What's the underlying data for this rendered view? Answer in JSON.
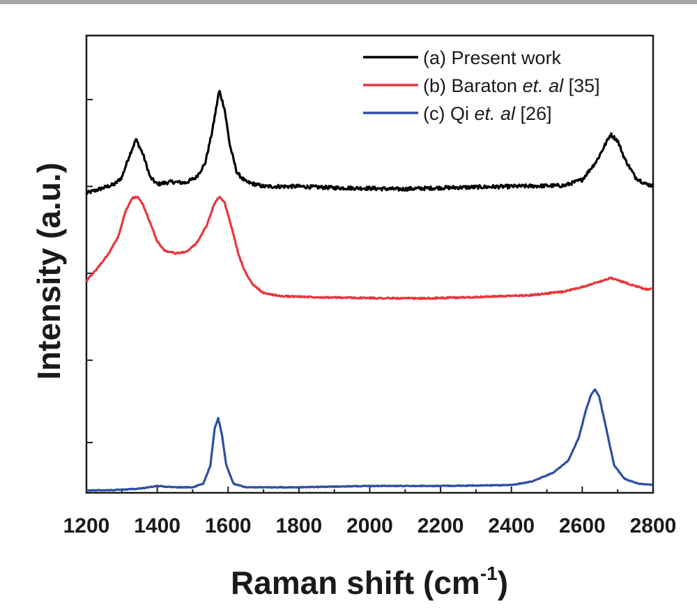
{
  "chart_data": {
    "type": "line",
    "title": "",
    "xlabel": "Raman shift (cm",
    "xlabel_sup": "-1",
    "xlabel_close": ")",
    "ylabel": "Intensity (a.u.)",
    "xlim": [
      1200,
      2800
    ],
    "ylim": [
      0,
      1
    ],
    "xticks": [
      1200,
      1400,
      1600,
      1800,
      2000,
      2200,
      2400,
      2600,
      2800
    ],
    "xtick_labels": [
      "1200",
      "1400",
      "1600",
      "1800",
      "2000",
      "2200",
      "2400",
      "2600",
      "2800"
    ],
    "grid": false,
    "legend_position": "top-right",
    "y_tick_marks": [
      0.11,
      0.29,
      0.48,
      0.67,
      0.86
    ],
    "series": [
      {
        "name": "(a) Present work",
        "legend": {
          "prefix": "(a) Present work",
          "italic": "",
          "suffix": ""
        },
        "color": "#000000",
        "noise": 0.004,
        "points": [
          [
            1200,
            0.655
          ],
          [
            1240,
            0.665
          ],
          [
            1280,
            0.675
          ],
          [
            1300,
            0.69
          ],
          [
            1320,
            0.735
          ],
          [
            1340,
            0.773
          ],
          [
            1360,
            0.74
          ],
          [
            1380,
            0.69
          ],
          [
            1400,
            0.675
          ],
          [
            1440,
            0.68
          ],
          [
            1480,
            0.678
          ],
          [
            1510,
            0.69
          ],
          [
            1535,
            0.72
          ],
          [
            1555,
            0.79
          ],
          [
            1575,
            0.88
          ],
          [
            1590,
            0.84
          ],
          [
            1605,
            0.76
          ],
          [
            1625,
            0.7
          ],
          [
            1650,
            0.68
          ],
          [
            1700,
            0.67
          ],
          [
            1800,
            0.67
          ],
          [
            1900,
            0.667
          ],
          [
            2000,
            0.666
          ],
          [
            2080,
            0.664
          ],
          [
            2200,
            0.667
          ],
          [
            2400,
            0.67
          ],
          [
            2550,
            0.672
          ],
          [
            2600,
            0.685
          ],
          [
            2640,
            0.725
          ],
          [
            2680,
            0.784
          ],
          [
            2700,
            0.77
          ],
          [
            2720,
            0.73
          ],
          [
            2750,
            0.69
          ],
          [
            2780,
            0.675
          ],
          [
            2800,
            0.672
          ]
        ]
      },
      {
        "name": "(b) Baraton et. al [35]",
        "legend": {
          "prefix": "(b) Baraton ",
          "italic": "et. al",
          "suffix": " [35]"
        },
        "color": "#e8363c",
        "noise": 0.0015,
        "points": [
          [
            1200,
            0.463
          ],
          [
            1230,
            0.49
          ],
          [
            1260,
            0.52
          ],
          [
            1290,
            0.56
          ],
          [
            1310,
            0.615
          ],
          [
            1330,
            0.645
          ],
          [
            1345,
            0.647
          ],
          [
            1360,
            0.63
          ],
          [
            1380,
            0.59
          ],
          [
            1400,
            0.55
          ],
          [
            1420,
            0.53
          ],
          [
            1450,
            0.524
          ],
          [
            1480,
            0.526
          ],
          [
            1510,
            0.545
          ],
          [
            1540,
            0.585
          ],
          [
            1560,
            0.63
          ],
          [
            1575,
            0.648
          ],
          [
            1590,
            0.635
          ],
          [
            1610,
            0.58
          ],
          [
            1630,
            0.52
          ],
          [
            1650,
            0.48
          ],
          [
            1670,
            0.455
          ],
          [
            1700,
            0.437
          ],
          [
            1750,
            0.43
          ],
          [
            1800,
            0.429
          ],
          [
            1900,
            0.427
          ],
          [
            2000,
            0.426
          ],
          [
            2150,
            0.425
          ],
          [
            2300,
            0.428
          ],
          [
            2450,
            0.432
          ],
          [
            2550,
            0.44
          ],
          [
            2620,
            0.455
          ],
          [
            2650,
            0.462
          ],
          [
            2680,
            0.47
          ],
          [
            2700,
            0.465
          ],
          [
            2750,
            0.452
          ],
          [
            2780,
            0.445
          ],
          [
            2800,
            0.446
          ]
        ]
      },
      {
        "name": "(c) Qi et. al [26]",
        "legend": {
          "prefix": "(c) Qi ",
          "italic": "et. al",
          "suffix": " [26]"
        },
        "color": "#2d4fa3",
        "noise": 0.0008,
        "points": [
          [
            1200,
            0.005
          ],
          [
            1280,
            0.006
          ],
          [
            1350,
            0.009
          ],
          [
            1400,
            0.015
          ],
          [
            1450,
            0.012
          ],
          [
            1500,
            0.012
          ],
          [
            1530,
            0.02
          ],
          [
            1550,
            0.06
          ],
          [
            1562,
            0.14
          ],
          [
            1572,
            0.163
          ],
          [
            1582,
            0.13
          ],
          [
            1595,
            0.06
          ],
          [
            1615,
            0.02
          ],
          [
            1650,
            0.012
          ],
          [
            1800,
            0.012
          ],
          [
            2000,
            0.015
          ],
          [
            2200,
            0.015
          ],
          [
            2400,
            0.017
          ],
          [
            2460,
            0.025
          ],
          [
            2520,
            0.045
          ],
          [
            2560,
            0.07
          ],
          [
            2590,
            0.12
          ],
          [
            2610,
            0.18
          ],
          [
            2625,
            0.215
          ],
          [
            2636,
            0.226
          ],
          [
            2648,
            0.21
          ],
          [
            2665,
            0.15
          ],
          [
            2690,
            0.06
          ],
          [
            2720,
            0.03
          ],
          [
            2760,
            0.02
          ],
          [
            2800,
            0.017
          ]
        ]
      }
    ]
  }
}
